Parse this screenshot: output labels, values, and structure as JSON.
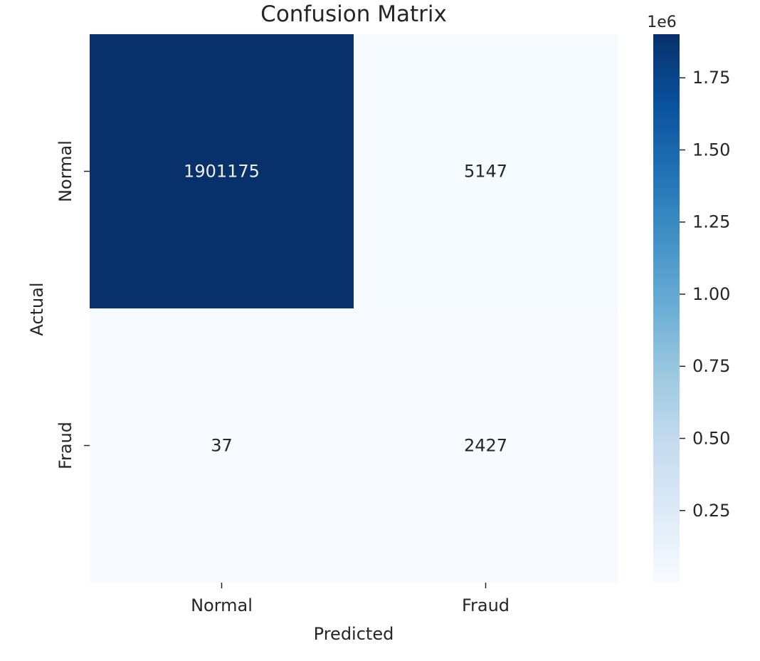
{
  "chart_data": {
    "type": "heatmap",
    "title": "Confusion Matrix",
    "xlabel": "Predicted",
    "ylabel": "Actual",
    "x_categories": [
      "Normal",
      "Fraud"
    ],
    "y_categories": [
      "Normal",
      "Fraud"
    ],
    "values": [
      [
        1901175,
        5147
      ],
      [
        37,
        2427
      ]
    ],
    "colormap": "Blues",
    "colorbar": {
      "min": 37,
      "max": 1901175,
      "ticks": [
        0.25,
        0.5,
        0.75,
        1.0,
        1.25,
        1.5,
        1.75
      ],
      "tick_labels": [
        "0.25",
        "0.50",
        "0.75",
        "1.00",
        "1.25",
        "1.50",
        "1.75"
      ],
      "scale_label": "1e6",
      "tick_multiplier": 1000000
    },
    "colors": {
      "blues_low": "#f7fbff",
      "blues_high": "#08306b"
    }
  }
}
